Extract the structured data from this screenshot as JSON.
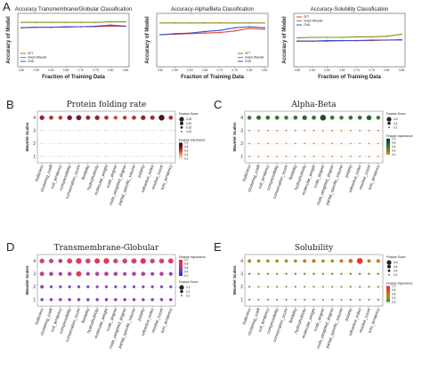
{
  "panel_letters": [
    "A",
    "B",
    "C",
    "D",
    "E"
  ],
  "chart_data": [
    {
      "panel": "A",
      "type": "line",
      "title": "Accuracy Transmembrane/Globular Classification",
      "xlabel": "Fraction of Training Data",
      "ylabel": "Accuracy of Model",
      "x": [
        0.5,
        0.55,
        0.6,
        0.65,
        0.7,
        0.75,
        0.8,
        0.85
      ],
      "x_tick_labels": [
        "0.50",
        "0.55",
        "0.60",
        "0.65",
        "0.70",
        "0.75",
        "0.80",
        "0.85"
      ],
      "ylim": [
        0,
        1
      ],
      "legend_position": "lower-left",
      "series": [
        {
          "name": "GFT",
          "color": "#e8433a",
          "values": [
            0.73,
            0.74,
            0.74,
            0.74,
            0.75,
            0.75,
            0.76,
            0.76
          ]
        },
        {
          "name": "Graph-Wavelet",
          "color": "#8a8a1a",
          "values": [
            0.83,
            0.83,
            0.83,
            0.83,
            0.83,
            0.83,
            0.84,
            0.84
          ]
        },
        {
          "name": "CNN",
          "color": "#3a4fd0",
          "values": [
            0.73,
            0.74,
            0.74,
            0.75,
            0.75,
            0.76,
            0.78,
            0.76
          ]
        }
      ]
    },
    {
      "panel": "A2",
      "type": "line",
      "title": "Accuracy-Alpha/Beta Classification",
      "xlabel": "Fraction of Training Data",
      "ylabel": "Accuracy of Model",
      "x": [
        0.5,
        0.55,
        0.6,
        0.65,
        0.7,
        0.75,
        0.8,
        0.85
      ],
      "x_tick_labels": [
        "0.50",
        "0.55",
        "0.60",
        "0.65",
        "0.70",
        "0.75",
        "0.80",
        "0.85"
      ],
      "ylim": [
        0,
        1
      ],
      "legend_position": "lower-right",
      "series": [
        {
          "name": "GFT",
          "color": "#e8433a",
          "values": [
            0.6,
            0.61,
            0.62,
            0.63,
            0.64,
            0.67,
            0.72,
            0.7
          ]
        },
        {
          "name": "Graph-Wavelet",
          "color": "#8a8a1a",
          "values": [
            0.82,
            0.82,
            0.82,
            0.82,
            0.82,
            0.82,
            0.82,
            0.82
          ]
        },
        {
          "name": "CNN",
          "color": "#3a4fd0",
          "values": [
            0.6,
            0.62,
            0.63,
            0.66,
            0.68,
            0.73,
            0.75,
            0.73
          ]
        }
      ]
    },
    {
      "panel": "A3",
      "type": "line",
      "title": "Accuracy-Solubility Classification",
      "xlabel": "Fraction of Training Data",
      "ylabel": "Accuracy of Model",
      "x": [
        0.5,
        0.55,
        0.6,
        0.65,
        0.7,
        0.75,
        0.8,
        0.85
      ],
      "x_tick_labels": [
        "0.50",
        "0.55",
        "0.60",
        "0.65",
        "0.70",
        "0.75",
        "0.80",
        "0.85"
      ],
      "ylim": [
        0,
        1
      ],
      "legend_position": "top-left",
      "series": [
        {
          "name": "GFT",
          "color": "#e8433a",
          "values": [
            0.48,
            0.48,
            0.48,
            0.49,
            0.49,
            0.49,
            0.5,
            0.51
          ]
        },
        {
          "name": "Graph-Wavelet",
          "color": "#8a8a1a",
          "values": [
            0.54,
            0.55,
            0.55,
            0.55,
            0.56,
            0.56,
            0.57,
            0.61
          ]
        },
        {
          "name": "CNN",
          "color": "#3a4fd0",
          "values": [
            0.48,
            0.48,
            0.49,
            0.49,
            0.49,
            0.5,
            0.5,
            0.5
          ]
        }
      ]
    },
    {
      "panel": "B",
      "type": "scatter",
      "title": "Protein folding rate",
      "ylabel": "Wavelet Scales",
      "features": [
        "bulkiness",
        "clustering_coeff",
        "coil_tendency",
        "compressibility",
        "conservation_score",
        "flexibility",
        "hydrophobicity",
        "molecular_weight",
        "node_degree",
        "node_weighted_degree",
        "partial_specific_volume",
        "polarity",
        "refractive_index",
        "residue_count",
        "turn_tendency"
      ],
      "scales": [
        1,
        2,
        3,
        4
      ],
      "legend_size_title": "Feature Score",
      "legend_size_ticks": [
        "0.25",
        "0.20",
        "0.15",
        "0.10"
      ],
      "legend_color_title": "Feature Importance",
      "legend_color_ticks": [
        "1.0",
        "0.8",
        "0.6",
        "0.4",
        "0.2"
      ],
      "colormap": [
        "#fde6d8",
        "#f4a26b",
        "#d13b2a",
        "#7a1020",
        "#2a0a18"
      ],
      "values": [
        [
          0.05,
          0.05,
          0.05,
          0.05,
          0.05,
          0.05,
          0.05,
          0.05,
          0.05,
          0.05,
          0.05,
          0.05,
          0.05,
          0.05,
          0.05
        ],
        [
          0.05,
          0.05,
          0.05,
          0.05,
          0.05,
          0.05,
          0.05,
          0.05,
          0.05,
          0.05,
          0.05,
          0.05,
          0.05,
          0.05,
          0.05
        ],
        [
          0.06,
          0.06,
          0.06,
          0.06,
          0.06,
          0.06,
          0.06,
          0.06,
          0.06,
          0.06,
          0.06,
          0.06,
          0.06,
          0.06,
          0.06
        ],
        [
          0.7,
          0.6,
          0.55,
          0.75,
          0.8,
          0.65,
          0.7,
          0.6,
          0.5,
          0.55,
          0.6,
          0.7,
          0.65,
          0.95,
          0.6
        ]
      ]
    },
    {
      "panel": "C",
      "type": "scatter",
      "title": "Alpha-Beta",
      "ylabel": "Wavelet Scales",
      "features": [
        "bulkiness",
        "clustering_coeff",
        "coil_tendency",
        "compressibility",
        "conservation_score",
        "flexibility",
        "hydrophobicity",
        "molecular_weight",
        "node_degree",
        "node_weighted_degree",
        "partial_specific_volume",
        "polarity",
        "refractive_index",
        "residue_count",
        "turn_tendency"
      ],
      "scales": [
        1,
        2,
        3,
        4
      ],
      "legend_size_title": "Feature Score",
      "legend_size_ticks": [
        "0.6",
        "0.4",
        "0.2"
      ],
      "legend_color_title": "Feature Importance",
      "legend_color_ticks": [
        "1.0",
        "0.8",
        "0.6",
        "0.4",
        "0.2"
      ],
      "colormap": [
        "#e08a2a",
        "#8a7a1a",
        "#3a7a2a",
        "#1f5a2a",
        "#0f3a1a"
      ],
      "values": [
        [
          0.05,
          0.05,
          0.05,
          0.05,
          0.05,
          0.05,
          0.05,
          0.05,
          0.05,
          0.05,
          0.05,
          0.05,
          0.05,
          0.05,
          0.05
        ],
        [
          0.05,
          0.05,
          0.05,
          0.05,
          0.05,
          0.05,
          0.05,
          0.05,
          0.05,
          0.05,
          0.05,
          0.05,
          0.05,
          0.05,
          0.05
        ],
        [
          0.06,
          0.06,
          0.06,
          0.06,
          0.06,
          0.06,
          0.06,
          0.06,
          0.06,
          0.06,
          0.06,
          0.06,
          0.06,
          0.06,
          0.06
        ],
        [
          0.55,
          0.65,
          0.6,
          0.6,
          0.55,
          0.6,
          0.7,
          0.6,
          0.95,
          0.6,
          0.55,
          0.6,
          0.6,
          0.75,
          0.55
        ]
      ]
    },
    {
      "panel": "D",
      "type": "scatter",
      "title": "Transmembrane-Globular",
      "ylabel": "Wavelet Scales",
      "features": [
        "bulkiness",
        "clustering_coeff",
        "coil_tendency",
        "compressibility",
        "conservation_score",
        "flexibility",
        "hydrophobicity",
        "molecular_weight",
        "node_degree",
        "node_weighted_degree",
        "partial_specific_volume",
        "polarity",
        "refractive_index",
        "residue_count",
        "turn_tendency"
      ],
      "scales": [
        1,
        2,
        3,
        4
      ],
      "legend_color_title": "Feature Importance",
      "legend_color_ticks": [
        "1.0",
        "0.8",
        "0.6",
        "0.4",
        "0.2"
      ],
      "legend_size_title": "Feature Score",
      "legend_size_ticks": [
        "0.3",
        "0.2",
        "0.1"
      ],
      "colormap": [
        "#2a2ad0",
        "#6a3ac0",
        "#a03aa0",
        "#d03a6a",
        "#f0203a"
      ],
      "values": [
        [
          0.35,
          0.35,
          0.35,
          0.35,
          0.35,
          0.35,
          0.35,
          0.35,
          0.35,
          0.35,
          0.35,
          0.35,
          0.35,
          0.35,
          0.35
        ],
        [
          0.45,
          0.3,
          0.3,
          0.3,
          0.3,
          0.3,
          0.3,
          0.3,
          0.3,
          0.3,
          0.3,
          0.3,
          0.3,
          0.3,
          0.3
        ],
        [
          0.65,
          0.55,
          0.5,
          0.55,
          0.85,
          0.5,
          0.55,
          0.6,
          0.55,
          0.5,
          0.55,
          0.6,
          0.5,
          0.55,
          0.5
        ],
        [
          0.7,
          0.65,
          0.6,
          0.8,
          0.9,
          0.75,
          0.85,
          0.9,
          0.7,
          0.75,
          0.8,
          0.9,
          0.7,
          0.75,
          0.8
        ]
      ]
    },
    {
      "panel": "E",
      "type": "scatter",
      "title": "Solubility",
      "ylabel": "Wavelet Scales",
      "features": [
        "bulkiness",
        "clustering_coeff",
        "coil_tendency",
        "compressibility",
        "conservation_score",
        "flexibility",
        "hydrophobicity",
        "molecular_weight",
        "node_degree",
        "node_weighted_degree",
        "partial_specific_volume",
        "polarity",
        "refractive_index",
        "residue_count",
        "turn_tendency"
      ],
      "scales": [
        1,
        2,
        3,
        4
      ],
      "legend_size_title": "Feature Score",
      "legend_size_ticks": [
        "0.8",
        "0.6",
        "0.4",
        "0.2"
      ],
      "legend_color_title": "Feature Importance",
      "legend_color_ticks": [
        "1.0",
        "0.8",
        "0.6",
        "0.4",
        "0.2"
      ],
      "colormap": [
        "#3a8a2a",
        "#8a9a1a",
        "#c07a1a",
        "#e04a1a",
        "#f01a1a"
      ],
      "values": [
        [
          0.1,
          0.1,
          0.1,
          0.1,
          0.1,
          0.1,
          0.1,
          0.1,
          0.1,
          0.1,
          0.1,
          0.1,
          0.1,
          0.1,
          0.1
        ],
        [
          0.1,
          0.1,
          0.1,
          0.1,
          0.1,
          0.1,
          0.1,
          0.1,
          0.1,
          0.1,
          0.1,
          0.1,
          0.1,
          0.1,
          0.1
        ],
        [
          0.15,
          0.15,
          0.15,
          0.15,
          0.15,
          0.15,
          0.15,
          0.15,
          0.15,
          0.15,
          0.15,
          0.15,
          0.15,
          0.15,
          0.15
        ],
        [
          0.45,
          0.4,
          0.4,
          0.4,
          0.4,
          0.4,
          0.45,
          0.5,
          0.4,
          0.4,
          0.45,
          0.6,
          0.95,
          0.45,
          0.5
        ]
      ]
    }
  ]
}
